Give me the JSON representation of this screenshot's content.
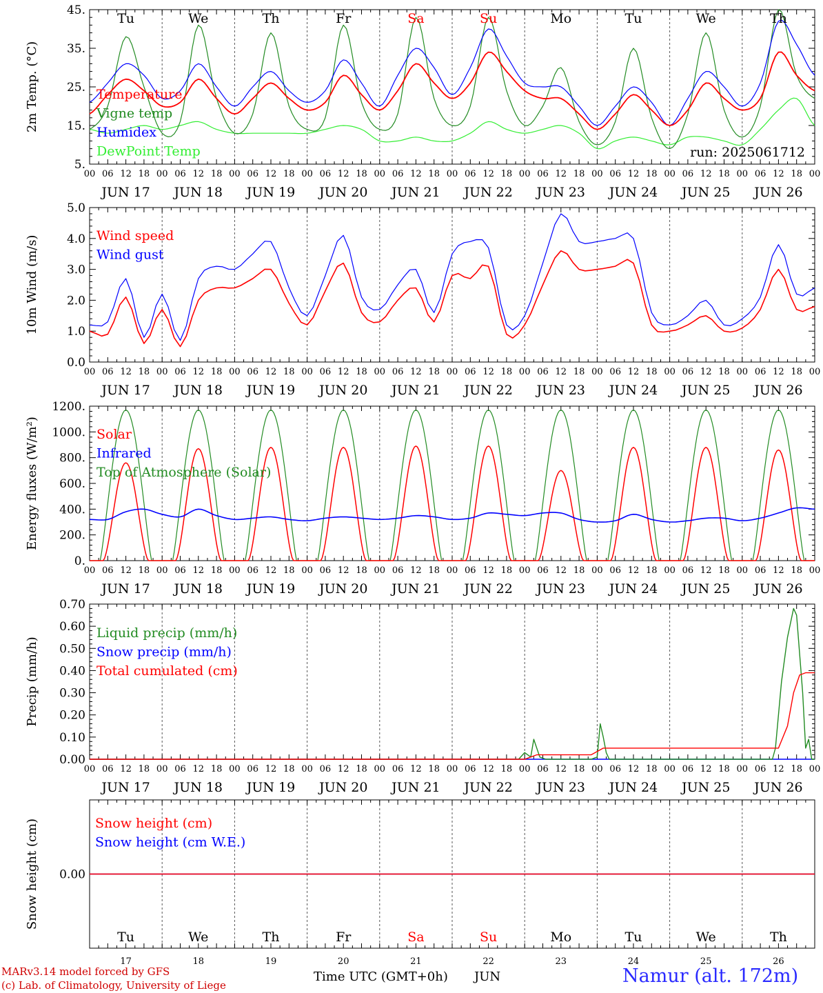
{
  "footer": {
    "model": "MARv3.14 model forced by GFS",
    "lab": "(c) Lab. of Climatology, University of Liege",
    "xtitle": "Time UTC (GMT+0h)",
    "month": "JUN",
    "station": "Namur (alt. 172m)"
  },
  "colors": {
    "temperature": "#ff0000",
    "vigne": "#228b22",
    "humidex": "#0000ff",
    "dewpoint": "#33ee33",
    "weekend": "#ff0000",
    "grid": "#555555"
  },
  "run_label": "run: 2025061712",
  "days": {
    "weekday": [
      "Tu",
      "We",
      "Th",
      "Fr",
      "Sa",
      "Su",
      "Mo",
      "Tu",
      "We",
      "Th"
    ],
    "date_label": [
      "JUN 17",
      "JUN 18",
      "JUN 19",
      "JUN 20",
      "JUN 21",
      "JUN 22",
      "JUN 23",
      "JUN 24",
      "JUN 25",
      "JUN 26"
    ],
    "day_number": [
      "17",
      "18",
      "19",
      "20",
      "21",
      "22",
      "23",
      "24",
      "25",
      "26"
    ],
    "weekend": [
      false,
      false,
      false,
      false,
      true,
      true,
      false,
      false,
      false,
      false
    ]
  },
  "hour_ticks": [
    "00",
    "06",
    "12",
    "18"
  ],
  "final_tick": "00",
  "chart_data": [
    {
      "type": "line",
      "ylabel": "2m Temp. (°C)",
      "ylim": [
        5,
        45
      ],
      "yticks": [
        "5.",
        "15.",
        "25.",
        "35.",
        "45."
      ],
      "legend": [
        "Temperature",
        "Vigne temp",
        "Humidex",
        "DewPoint Temp"
      ],
      "x_hours": [
        0,
        6,
        12,
        18,
        24,
        30,
        36,
        42,
        48,
        54,
        60,
        66,
        72,
        78,
        84,
        90,
        96,
        102,
        108,
        114,
        120,
        126,
        132,
        138,
        144,
        150,
        156,
        162,
        168,
        174,
        180,
        186,
        192,
        198,
        204,
        210,
        216,
        222,
        228,
        234,
        240
      ],
      "series": [
        {
          "name": "Temperature",
          "values": [
            18,
            23,
            27,
            24,
            20,
            21,
            27,
            22,
            18,
            22,
            26,
            22,
            19,
            21,
            28,
            23,
            19,
            24,
            31,
            26,
            22,
            26,
            34,
            29,
            24,
            22,
            22,
            18,
            14,
            18,
            23,
            19,
            15,
            19,
            26,
            22,
            19,
            22,
            34,
            28,
            24
          ]
        },
        {
          "name": "Vigne temp",
          "values": [
            14,
            20,
            38,
            25,
            13,
            16,
            41,
            22,
            13,
            18,
            39,
            20,
            14,
            17,
            41,
            21,
            14,
            18,
            43,
            22,
            15,
            20,
            43,
            24,
            15,
            20,
            30,
            16,
            10,
            16,
            35,
            17,
            9,
            18,
            39,
            19,
            12,
            20,
            45,
            28,
            22
          ]
        },
        {
          "name": "Humidex",
          "values": [
            21,
            26,
            31,
            28,
            22,
            24,
            31,
            25,
            20,
            25,
            29,
            24,
            21,
            24,
            32,
            26,
            20,
            28,
            35,
            30,
            23,
            30,
            40,
            33,
            26,
            25,
            25,
            20,
            15,
            20,
            25,
            21,
            15,
            22,
            29,
            25,
            20,
            26,
            42,
            36,
            28
          ]
        },
        {
          "name": "DewPoint Temp",
          "values": [
            14,
            13,
            14,
            15,
            14,
            15,
            16,
            14,
            13,
            13,
            13,
            13,
            13,
            14,
            15,
            14,
            11,
            11,
            12,
            11,
            11,
            13,
            16,
            14,
            13,
            14,
            15,
            13,
            9,
            11,
            12,
            11,
            10,
            12,
            12,
            11,
            10,
            14,
            19,
            22,
            15
          ]
        }
      ]
    },
    {
      "type": "line",
      "ylabel": "10m Wind (m/s)",
      "ylim": [
        0,
        5
      ],
      "yticks": [
        "0.0",
        "1.0",
        "2.0",
        "3.0",
        "4.0",
        "5.0"
      ],
      "legend": [
        "Wind speed",
        "Wind gust"
      ],
      "x_hours": [
        0,
        6,
        12,
        18,
        24,
        30,
        36,
        42,
        48,
        54,
        60,
        66,
        72,
        78,
        84,
        90,
        96,
        102,
        108,
        114,
        120,
        126,
        132,
        138,
        144,
        150,
        156,
        162,
        168,
        174,
        180,
        186,
        192,
        198,
        204,
        210,
        216,
        222,
        228,
        234,
        240
      ],
      "series": [
        {
          "name": "Wind speed",
          "values": [
            1.0,
            0.9,
            2.1,
            0.6,
            1.7,
            0.5,
            2.0,
            2.4,
            2.4,
            2.7,
            3.0,
            1.9,
            1.2,
            2.3,
            3.2,
            1.6,
            1.3,
            2.0,
            2.4,
            1.3,
            2.8,
            2.7,
            3.1,
            0.9,
            1.2,
            2.5,
            3.6,
            3.0,
            3.0,
            3.1,
            3.2,
            1.2,
            1.0,
            1.2,
            1.5,
            1.0,
            1.1,
            1.7,
            3.0,
            1.7,
            1.8
          ]
        },
        {
          "name": "Wind gust",
          "values": [
            1.2,
            1.3,
            2.7,
            0.8,
            2.2,
            0.7,
            2.7,
            3.1,
            3.0,
            3.5,
            3.9,
            2.4,
            1.5,
            2.8,
            4.1,
            2.1,
            1.7,
            2.5,
            3.0,
            1.6,
            3.5,
            3.9,
            3.7,
            1.2,
            1.5,
            3.2,
            4.8,
            3.9,
            3.9,
            4.0,
            4.0,
            1.6,
            1.2,
            1.5,
            2.0,
            1.2,
            1.4,
            2.1,
            3.8,
            2.2,
            2.4
          ]
        }
      ]
    },
    {
      "type": "line",
      "ylabel": "Energy fluxes (W/m²)",
      "ylim": [
        0,
        1200
      ],
      "yticks": [
        "0.",
        "200.",
        "400.",
        "600.",
        "800.",
        "1000.",
        "1200."
      ],
      "legend": [
        "Solar",
        "Infrared",
        "Top of Atmosphere (Solar)"
      ],
      "solar_peak_per_day": [
        760,
        870,
        880,
        880,
        890,
        890,
        700,
        880,
        880,
        860
      ],
      "toa_peak": 1170,
      "x_hours": [
        0,
        6,
        12,
        18,
        24,
        30,
        36,
        42,
        48,
        54,
        60,
        66,
        72,
        78,
        84,
        90,
        96,
        102,
        108,
        114,
        120,
        126,
        132,
        138,
        144,
        150,
        156,
        162,
        168,
        174,
        180,
        186,
        192,
        198,
        204,
        210,
        216,
        222,
        228,
        234,
        240
      ],
      "series": [
        {
          "name": "Infrared",
          "values": [
            320,
            320,
            380,
            400,
            360,
            340,
            400,
            350,
            320,
            330,
            340,
            320,
            310,
            330,
            340,
            330,
            320,
            330,
            350,
            340,
            320,
            330,
            370,
            360,
            350,
            370,
            370,
            320,
            300,
            310,
            360,
            320,
            300,
            310,
            330,
            330,
            310,
            330,
            370,
            410,
            400
          ]
        }
      ]
    },
    {
      "type": "line",
      "ylabel": "Precip (mm/h)",
      "ylim": [
        0,
        0.7
      ],
      "yticks": [
        "0.00",
        "0.10",
        "0.20",
        "0.30",
        "0.40",
        "0.50",
        "0.60",
        "0.70"
      ],
      "legend": [
        "Liquid precip (mm/h)",
        "Snow precip (mm/h)",
        "Total cumulated (cm)"
      ],
      "series": [
        {
          "name": "Liquid precip (mm/h)",
          "points": [
            [
              0,
              0
            ],
            [
              142,
              0
            ],
            [
              144,
              0.03
            ],
            [
              146,
              0.01
            ],
            [
              147,
              0.09
            ],
            [
              149,
              0.01
            ],
            [
              151,
              0
            ],
            [
              166,
              0
            ],
            [
              168,
              0.01
            ],
            [
              169,
              0.16
            ],
            [
              170,
              0.1
            ],
            [
              171,
              0.03
            ],
            [
              172,
              0
            ],
            [
              226,
              0
            ],
            [
              227,
              0.05
            ],
            [
              229,
              0.35
            ],
            [
              231,
              0.55
            ],
            [
              233,
              0.68
            ],
            [
              234,
              0.65
            ],
            [
              236,
              0.3
            ],
            [
              237,
              0.05
            ],
            [
              238,
              0.09
            ],
            [
              239,
              0
            ],
            [
              240,
              0
            ]
          ]
        },
        {
          "name": "Snow precip (mm/h)",
          "points": [
            [
              0,
              0
            ],
            [
              240,
              0
            ]
          ]
        },
        {
          "name": "Total cumulated (cm)",
          "points": [
            [
              0,
              0
            ],
            [
              144,
              0
            ],
            [
              146,
              0.01
            ],
            [
              148,
              0.02
            ],
            [
              166,
              0.02
            ],
            [
              170,
              0.05
            ],
            [
              228,
              0.05
            ],
            [
              231,
              0.15
            ],
            [
              233,
              0.3
            ],
            [
              235,
              0.38
            ],
            [
              237,
              0.39
            ],
            [
              240,
              0.39
            ]
          ]
        }
      ]
    },
    {
      "type": "line",
      "ylabel": "Snow height (cm)",
      "yticks": [
        "0.00"
      ],
      "legend": [
        "Snow height (cm)",
        "Snow height (cm W.E.)"
      ],
      "series": [
        {
          "name": "Snow height (cm)",
          "points": [
            [
              0,
              0
            ],
            [
              240,
              0
            ]
          ]
        },
        {
          "name": "Snow height (cm W.E.)",
          "points": [
            [
              0,
              0
            ],
            [
              240,
              0
            ]
          ]
        }
      ]
    }
  ]
}
